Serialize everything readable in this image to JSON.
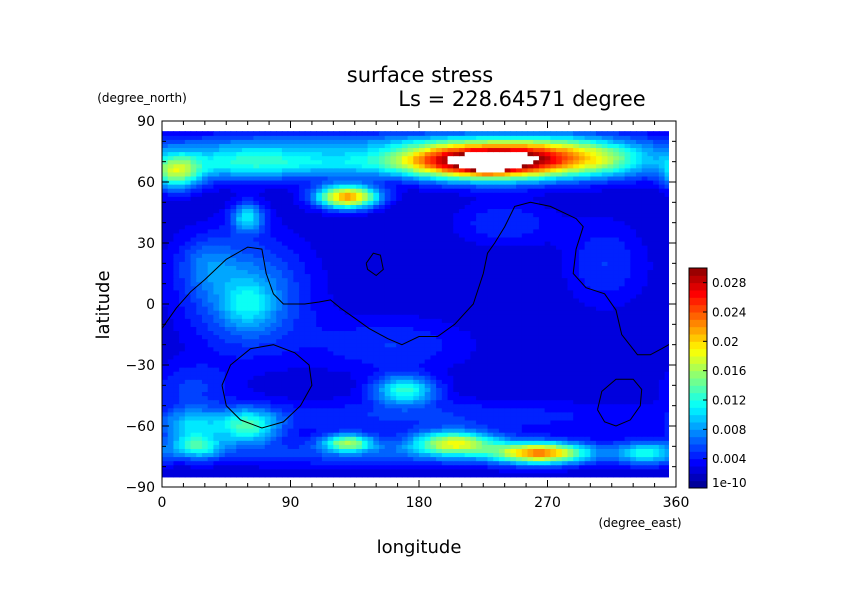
{
  "chart_data": {
    "type": "heatmap",
    "title": "surface stress",
    "subtitle": "Ls = 228.64571 degree",
    "xlabel": "longitude",
    "ylabel": "latitude",
    "x_unit": "(degree_east)",
    "y_unit": "(degree_north)",
    "xlim": [
      0,
      360
    ],
    "ylim": [
      -90,
      90
    ],
    "x_ticks": [
      0,
      90,
      180,
      270,
      360
    ],
    "y_ticks": [
      -90,
      -60,
      -30,
      0,
      30,
      60,
      90
    ],
    "colorbar": {
      "min_label": "1e-10",
      "levels": [
        0.004,
        0.008,
        0.012,
        0.016,
        0.02,
        0.024,
        0.028
      ],
      "tick_labels": [
        "1e-10",
        "0.004",
        "0.008",
        "0.012",
        "0.016",
        "0.02",
        "0.024",
        "0.028"
      ],
      "max": 0.03
    },
    "field": {
      "background": 0.002,
      "features": [
        {
          "lon": 240,
          "lat": 70,
          "sx": 35,
          "sy": 6,
          "value": 0.026
        },
        {
          "lon": 228,
          "lat": 69,
          "sx": 9,
          "sy": 2.5,
          "value": 0.012
        },
        {
          "lon": 195,
          "lat": 71,
          "sx": 28,
          "sy": 6,
          "value": 0.012
        },
        {
          "lon": 275,
          "lat": 76,
          "sx": 40,
          "sy": 6,
          "value": 0.008
        },
        {
          "lon": 310,
          "lat": 70,
          "sx": 25,
          "sy": 6,
          "value": 0.008
        },
        {
          "lon": 60,
          "lat": 70,
          "sx": 40,
          "sy": 6,
          "value": 0.01
        },
        {
          "lon": 10,
          "lat": 65,
          "sx": 12,
          "sy": 6,
          "value": 0.012
        },
        {
          "lon": 140,
          "lat": 70,
          "sx": 35,
          "sy": 5,
          "value": 0.006
        },
        {
          "lon": 130,
          "lat": 53,
          "sx": 15,
          "sy": 4,
          "value": 0.02
        },
        {
          "lon": 140,
          "lat": 80,
          "sx": 100,
          "sy": 4,
          "value": 0.004
        },
        {
          "lon": 60,
          "lat": 43,
          "sx": 8,
          "sy": 5,
          "value": 0.008
        },
        {
          "lon": 60,
          "lat": 5,
          "sx": 30,
          "sy": 20,
          "value": 0.006
        },
        {
          "lon": 60,
          "lat": 0,
          "sx": 12,
          "sy": 8,
          "value": 0.004
        },
        {
          "lon": 30,
          "lat": 20,
          "sx": 15,
          "sy": 10,
          "value": 0.003
        },
        {
          "lon": 20,
          "lat": -40,
          "sx": 20,
          "sy": 8,
          "value": 0.003
        },
        {
          "lon": 170,
          "lat": -42,
          "sx": 15,
          "sy": 5,
          "value": 0.01
        },
        {
          "lon": 60,
          "lat": -60,
          "sx": 15,
          "sy": 6,
          "value": 0.01
        },
        {
          "lon": 20,
          "lat": -60,
          "sx": 15,
          "sy": 6,
          "value": 0.007
        },
        {
          "lon": 25,
          "lat": -70,
          "sx": 12,
          "sy": 4,
          "value": 0.008
        },
        {
          "lon": 130,
          "lat": -68,
          "sx": 12,
          "sy": 3,
          "value": 0.012
        },
        {
          "lon": 205,
          "lat": -68,
          "sx": 20,
          "sy": 4,
          "value": 0.014
        },
        {
          "lon": 265,
          "lat": -73,
          "sx": 22,
          "sy": 3.5,
          "value": 0.018
        },
        {
          "lon": 340,
          "lat": -73,
          "sx": 15,
          "sy": 4,
          "value": 0.008
        },
        {
          "lon": 180,
          "lat": -73,
          "sx": 120,
          "sy": 5,
          "value": 0.004
        },
        {
          "lon": 180,
          "lat": -55,
          "sx": 120,
          "sy": 6,
          "value": 0.003
        },
        {
          "lon": 310,
          "lat": 20,
          "sx": 20,
          "sy": 15,
          "value": 0.003
        },
        {
          "lon": 240,
          "lat": 40,
          "sx": 25,
          "sy": 8,
          "value": 0.003
        },
        {
          "lon": 160,
          "lat": -20,
          "sx": 40,
          "sy": 10,
          "value": 0.003
        }
      ]
    },
    "contours": [
      {
        "lonlat": [
          [
            0,
            -12
          ],
          [
            10,
            -2
          ],
          [
            20,
            6
          ],
          [
            30,
            12
          ],
          [
            45,
            22
          ],
          [
            60,
            28
          ],
          [
            70,
            27
          ],
          [
            73,
            15
          ],
          [
            78,
            5
          ],
          [
            85,
            0
          ],
          [
            100,
            0
          ],
          [
            110,
            1
          ],
          [
            118,
            2
          ],
          [
            125,
            -2
          ],
          [
            135,
            -7
          ],
          [
            145,
            -12
          ],
          [
            158,
            -17
          ],
          [
            168,
            -20
          ],
          [
            180,
            -16
          ],
          [
            193,
            -16
          ],
          [
            205,
            -10
          ],
          [
            218,
            0
          ],
          [
            225,
            15
          ],
          [
            228,
            25
          ],
          [
            233,
            30
          ],
          [
            240,
            38
          ],
          [
            247,
            48
          ],
          [
            258,
            50
          ],
          [
            272,
            48
          ],
          [
            290,
            42
          ],
          [
            295,
            38
          ],
          [
            290,
            27
          ],
          [
            288,
            15
          ],
          [
            297,
            8
          ],
          [
            310,
            5
          ],
          [
            318,
            -3
          ],
          [
            322,
            -15
          ],
          [
            333,
            -25
          ],
          [
            342,
            -25
          ],
          [
            350,
            -22
          ],
          [
            360,
            -18
          ]
        ]
      },
      {
        "lonlat": [
          [
            143,
            20
          ],
          [
            148,
            25
          ],
          [
            153,
            24
          ],
          [
            155,
            17
          ],
          [
            150,
            14
          ],
          [
            144,
            17
          ],
          [
            143,
            20
          ]
        ]
      },
      {
        "lonlat": [
          [
            42,
            -40
          ],
          [
            45,
            -50
          ],
          [
            55,
            -57
          ],
          [
            70,
            -61
          ],
          [
            85,
            -58
          ],
          [
            97,
            -50
          ],
          [
            105,
            -40
          ],
          [
            103,
            -30
          ],
          [
            93,
            -24
          ],
          [
            78,
            -20
          ],
          [
            62,
            -22
          ],
          [
            48,
            -30
          ],
          [
            42,
            -40
          ]
        ]
      },
      {
        "lonlat": [
          [
            305,
            -52
          ],
          [
            310,
            -58
          ],
          [
            318,
            -60
          ],
          [
            328,
            -57
          ],
          [
            335,
            -50
          ],
          [
            336,
            -42
          ],
          [
            330,
            -37
          ],
          [
            318,
            -37
          ],
          [
            308,
            -43
          ],
          [
            305,
            -52
          ]
        ]
      }
    ]
  }
}
